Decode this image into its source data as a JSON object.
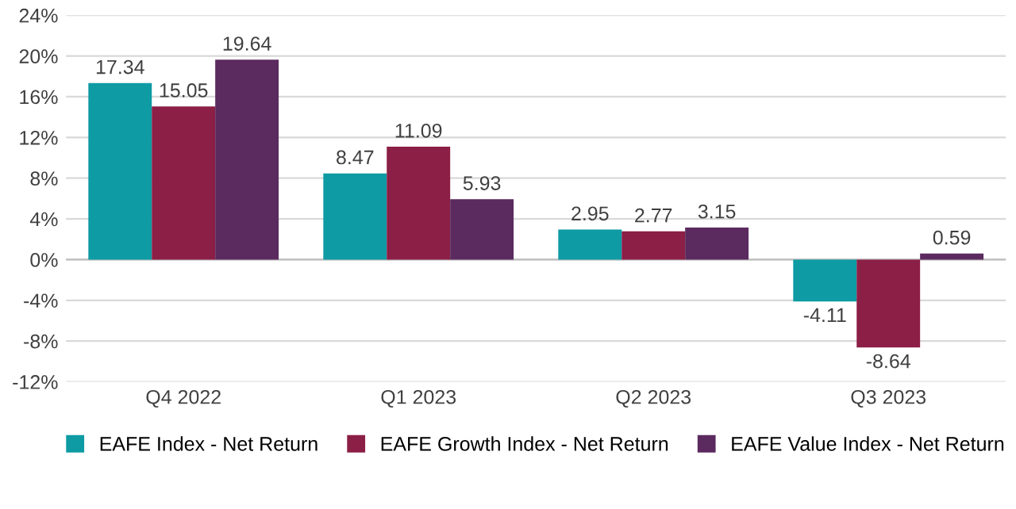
{
  "chart_data": {
    "type": "bar",
    "categories": [
      "Q4 2022",
      "Q1 2023",
      "Q2 2023",
      "Q3 2023"
    ],
    "series": [
      {
        "name": "EAFE Index - Net Return",
        "color": "#0e9ba4",
        "values": [
          17.34,
          8.47,
          2.95,
          -4.11
        ]
      },
      {
        "name": "EAFE Growth Index - Net Return",
        "color": "#8b1f45",
        "values": [
          15.05,
          11.09,
          2.77,
          -8.64
        ]
      },
      {
        "name": "EAFE Value Index - Net Return",
        "color": "#5b2a5f",
        "values": [
          19.64,
          5.93,
          3.15,
          0.59
        ]
      }
    ],
    "ylim": [
      -12,
      24
    ],
    "yticks": [
      {
        "value": -12,
        "label": "-12%"
      },
      {
        "value": -8,
        "label": "-8%"
      },
      {
        "value": -4,
        "label": "-4%"
      },
      {
        "value": 0,
        "label": "0%"
      },
      {
        "value": 4,
        "label": "4%"
      },
      {
        "value": 8,
        "label": "8%"
      },
      {
        "value": 12,
        "label": "12%"
      },
      {
        "value": 16,
        "label": "16%"
      },
      {
        "value": 20,
        "label": "20%"
      },
      {
        "value": 24,
        "label": "24%"
      }
    ],
    "grid": "y",
    "legend": "bottom",
    "data_labels": true
  }
}
